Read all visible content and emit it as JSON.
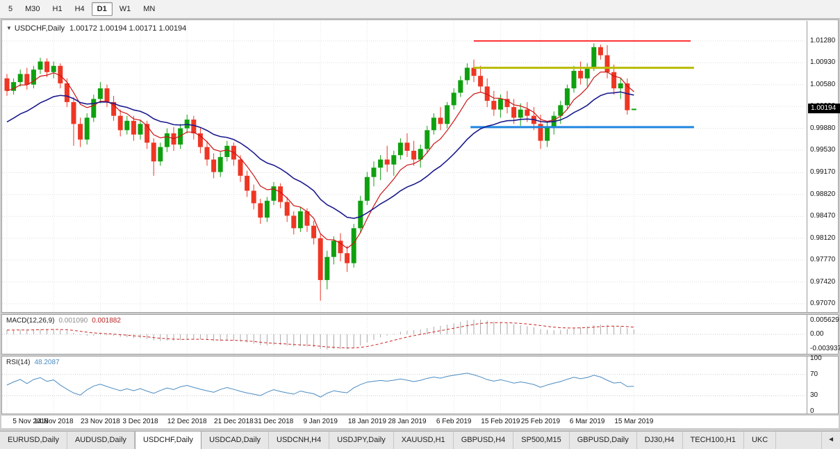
{
  "toolbar": {
    "timeframes": [
      {
        "label": "5",
        "active": false
      },
      {
        "label": "M30",
        "active": false
      },
      {
        "label": "H1",
        "active": false
      },
      {
        "label": "H4",
        "active": false
      },
      {
        "label": "D1",
        "active": true
      },
      {
        "label": "W1",
        "active": false
      },
      {
        "label": "MN",
        "active": false
      }
    ]
  },
  "chart_header": {
    "collapse_icon": "▼",
    "symbol": "USDCHF,Daily",
    "ohlc": "1.00172 1.00194 1.00171 1.00194"
  },
  "price_axis": {
    "labels": [
      "1.01280",
      "1.00930",
      "1.00580",
      "1.00230",
      "0.99880",
      "0.99530",
      "0.99170",
      "0.98820",
      "0.98470",
      "0.98120",
      "0.97770",
      "0.97420",
      "0.97070"
    ],
    "current_price": "1.00194"
  },
  "indicators": {
    "macd": {
      "label": "MACD(12,26,9)",
      "value_main": "0.001090",
      "value_signal": "0.001882",
      "scale": [
        "0.005629",
        "0.00",
        "-0.003937"
      ]
    },
    "rsi": {
      "label": "RSI(14)",
      "value": "48.2087",
      "scale": [
        "100",
        "70",
        "30",
        "0"
      ]
    }
  },
  "date_axis": {
    "labels": [
      {
        "text": "5 Nov 2018",
        "index": 0
      },
      {
        "text": "14 Nov 2018",
        "index": 7
      },
      {
        "text": "23 Nov 2018",
        "index": 14
      },
      {
        "text": "3 Dec 2018",
        "index": 20
      },
      {
        "text": "12 Dec 2018",
        "index": 27
      },
      {
        "text": "21 Dec 2018",
        "index": 34
      },
      {
        "text": "31 Dec 2018",
        "index": 40
      },
      {
        "text": "9 Jan 2019",
        "index": 47
      },
      {
        "text": "18 Jan 2019",
        "index": 54
      },
      {
        "text": "28 Jan 2019",
        "index": 60
      },
      {
        "text": "6 Feb 2019",
        "index": 67
      },
      {
        "text": "15 Feb 2019",
        "index": 74
      },
      {
        "text": "25 Feb 2019",
        "index": 80
      },
      {
        "text": "6 Mar 2019",
        "index": 87
      },
      {
        "text": "15 Mar 2019",
        "index": 94
      }
    ]
  },
  "tabs": {
    "items": [
      {
        "label": "EURUSD,Daily",
        "active": false
      },
      {
        "label": "AUDUSD,Daily",
        "active": false
      },
      {
        "label": "USDCHF,Daily",
        "active": true
      },
      {
        "label": "USDCAD,Daily",
        "active": false
      },
      {
        "label": "USDCNH,H4",
        "active": false
      },
      {
        "label": "USDJPY,Daily",
        "active": false
      },
      {
        "label": "XAUUSD,H1",
        "active": false
      },
      {
        "label": "GBPUSD,H4",
        "active": false
      },
      {
        "label": "SP500,M15",
        "active": false
      },
      {
        "label": "GBPUSD,Daily",
        "active": false
      },
      {
        "label": "DJ30,H4",
        "active": false
      },
      {
        "label": "TECH100,H1",
        "active": false
      },
      {
        "label": "UKC",
        "active": false
      }
    ],
    "scroll_icon": "◄"
  },
  "chart_data": {
    "type": "candlestick",
    "symbol": "USDCHF",
    "timeframe": "Daily",
    "price_range": [
      0.96937,
      1.01601
    ],
    "grid_prices": [
      1.0128,
      1.0093,
      1.0058,
      1.0023,
      0.9988,
      0.9953,
      0.9917,
      0.9882,
      0.9847,
      0.9812,
      0.9777,
      0.9742,
      0.9707
    ],
    "colors": {
      "up": "#0fa00f",
      "down": "#ee3624",
      "macd_histogram": "#a8a8a8",
      "macd_signal": "#cc2222",
      "rsi_line": "#4a8bc2",
      "grid": "#dcdcdc",
      "vgrid": "#e4e4e4",
      "level_grid": "#c8c8c8"
    },
    "candles": [
      [
        1.0068,
        1.0075,
        1.004,
        1.0048
      ],
      [
        1.0048,
        1.0068,
        1.0042,
        1.0062
      ],
      [
        1.0062,
        1.0082,
        1.0055,
        1.0075
      ],
      [
        1.0075,
        1.0085,
        1.005,
        1.0058
      ],
      [
        1.0058,
        1.0088,
        1.0052,
        1.0082
      ],
      [
        1.0082,
        1.0101,
        1.0075,
        1.0095
      ],
      [
        1.0095,
        1.01,
        1.007,
        1.0078
      ],
      [
        1.0078,
        1.0095,
        1.0068,
        1.0088
      ],
      [
        1.0088,
        1.0092,
        1.0052,
        1.006
      ],
      [
        1.006,
        1.0068,
        1.0022,
        1.003
      ],
      [
        1.003,
        1.0038,
        0.996,
        0.9995
      ],
      [
        0.9995,
        1.0005,
        0.9958,
        0.997
      ],
      [
        0.997,
        1.0012,
        0.9962,
        1.0005
      ],
      [
        1.0005,
        1.0042,
        0.9998,
        1.0035
      ],
      [
        1.0035,
        1.0062,
        1.0028,
        1.0052
      ],
      [
        1.0052,
        1.0058,
        1.0022,
        1.003
      ],
      [
        1.003,
        1.004,
        1.0,
        1.0008
      ],
      [
        1.0008,
        1.0018,
        0.9975,
        0.9985
      ],
      [
        0.9985,
        1.0008,
        0.9978,
        1.0
      ],
      [
        1.0,
        1.0008,
        0.9968,
        0.9978
      ],
      [
        0.9978,
        1.0002,
        0.997,
        0.9995
      ],
      [
        0.9995,
        1.0,
        0.9955,
        0.9965
      ],
      [
        0.9965,
        0.9972,
        0.9912,
        0.9935
      ],
      [
        0.9935,
        0.9965,
        0.9928,
        0.9958
      ],
      [
        0.9958,
        0.9988,
        0.995,
        0.998
      ],
      [
        0.998,
        0.999,
        0.9952,
        0.9962
      ],
      [
        0.9962,
        0.9995,
        0.9955,
        0.9988
      ],
      [
        0.9988,
        1.001,
        0.998,
        1.0002
      ],
      [
        1.0002,
        1.0008,
        0.997,
        0.998
      ],
      [
        0.998,
        0.999,
        0.9948,
        0.9958
      ],
      [
        0.9958,
        0.9968,
        0.9928,
        0.9938
      ],
      [
        0.9938,
        0.9948,
        0.9908,
        0.9918
      ],
      [
        0.9918,
        0.995,
        0.991,
        0.9942
      ],
      [
        0.9942,
        0.9968,
        0.9935,
        0.996
      ],
      [
        0.996,
        0.9965,
        0.9928,
        0.9938
      ],
      [
        0.9938,
        0.9945,
        0.9902,
        0.9912
      ],
      [
        0.9912,
        0.992,
        0.9878,
        0.9888
      ],
      [
        0.9888,
        0.9898,
        0.9858,
        0.9868
      ],
      [
        0.9868,
        0.9875,
        0.9835,
        0.9845
      ],
      [
        0.9845,
        0.9878,
        0.9838,
        0.9872
      ],
      [
        0.9872,
        0.9902,
        0.9865,
        0.9895
      ],
      [
        0.9895,
        0.99,
        0.986,
        0.987
      ],
      [
        0.987,
        0.9878,
        0.9838,
        0.9848
      ],
      [
        0.9848,
        0.9855,
        0.9818,
        0.9828
      ],
      [
        0.9828,
        0.9862,
        0.9822,
        0.9855
      ],
      [
        0.9855,
        0.986,
        0.9822,
        0.9832
      ],
      [
        0.9832,
        0.984,
        0.9802,
        0.9812
      ],
      [
        0.9812,
        0.9818,
        0.9712,
        0.9745
      ],
      [
        0.9745,
        0.9792,
        0.973,
        0.9782
      ],
      [
        0.9782,
        0.9815,
        0.977,
        0.9808
      ],
      [
        0.9808,
        0.982,
        0.9775,
        0.9788
      ],
      [
        0.9788,
        0.98,
        0.9758,
        0.9772
      ],
      [
        0.9772,
        0.9835,
        0.9765,
        0.9828
      ],
      [
        0.9828,
        0.988,
        0.982,
        0.9872
      ],
      [
        0.9872,
        0.9918,
        0.9865,
        0.991
      ],
      [
        0.991,
        0.9935,
        0.9895,
        0.9925
      ],
      [
        0.9925,
        0.9945,
        0.9905,
        0.9938
      ],
      [
        0.9938,
        0.996,
        0.9918,
        0.993
      ],
      [
        0.993,
        0.9952,
        0.9912,
        0.9945
      ],
      [
        0.9945,
        0.9972,
        0.9938,
        0.9965
      ],
      [
        0.9965,
        0.998,
        0.9942,
        0.9952
      ],
      [
        0.9952,
        0.9968,
        0.9928,
        0.9938
      ],
      [
        0.9938,
        0.9962,
        0.9925,
        0.9955
      ],
      [
        0.9955,
        0.9992,
        0.9948,
        0.9985
      ],
      [
        0.9985,
        1.0012,
        0.9978,
        1.0005
      ],
      [
        1.0005,
        1.0022,
        0.9985,
        0.9995
      ],
      [
        0.9995,
        1.003,
        0.9988,
        1.0025
      ],
      [
        1.0025,
        1.0052,
        1.0018,
        1.0045
      ],
      [
        1.0045,
        1.0072,
        1.0038,
        1.0065
      ],
      [
        1.0065,
        1.0092,
        1.0058,
        1.0085
      ],
      [
        1.0085,
        1.0098,
        1.0062,
        1.0072
      ],
      [
        1.0072,
        1.0088,
        1.0045,
        1.0055
      ],
      [
        1.0055,
        1.0068,
        1.0022,
        1.0032
      ],
      [
        1.0032,
        1.0048,
        1.0008,
        1.0018
      ],
      [
        1.0018,
        1.0042,
        1.0005,
        1.0035
      ],
      [
        1.0035,
        1.0048,
        1.0012,
        1.0022
      ],
      [
        1.0022,
        1.0035,
        0.9995,
        1.0005
      ],
      [
        1.0005,
        1.0028,
        0.9992,
        1.0018
      ],
      [
        1.0018,
        1.003,
        0.9998,
        1.0008
      ],
      [
        1.0008,
        1.0022,
        0.9985,
        0.9995
      ],
      [
        0.9995,
        1.001,
        0.9955,
        0.9968
      ],
      [
        0.9968,
        0.9998,
        0.9958,
        0.999
      ],
      [
        0.999,
        1.0015,
        0.9978,
        1.0008
      ],
      [
        1.0008,
        1.0032,
        0.9995,
        1.0025
      ],
      [
        1.0025,
        1.0058,
        1.0018,
        1.0052
      ],
      [
        1.0052,
        1.0088,
        1.0045,
        1.008
      ],
      [
        1.008,
        1.0095,
        1.0058,
        1.0068
      ],
      [
        1.0068,
        1.0092,
        1.0055,
        1.0085
      ],
      [
        1.0085,
        1.0124,
        1.008,
        1.0118
      ],
      [
        1.0118,
        1.0122,
        1.0098,
        1.0105
      ],
      [
        1.0105,
        1.0121,
        1.0068,
        1.0078
      ],
      [
        1.0078,
        1.009,
        1.0042,
        1.0052
      ],
      [
        1.0052,
        1.0068,
        1.0035,
        1.006
      ],
      [
        1.006,
        1.0068,
        1.001,
        1.0017
      ],
      [
        1.00172,
        1.00194,
        1.00171,
        1.00194
      ]
    ],
    "hlines": [
      {
        "price": 1.0128,
        "color": "#ff2d2d",
        "width": 2,
        "from": 70,
        "to": 102.5
      },
      {
        "price": 1.0085,
        "color": "#b9bd00",
        "width": 3,
        "from": 70,
        "to": 103
      },
      {
        "price": 0.999,
        "color": "#2086e0",
        "width": 3,
        "from": 69.5,
        "to": 103
      }
    ],
    "moving_averages": [
      {
        "period": 7,
        "color": "#cc1111",
        "width": 1.2,
        "seed_offset": 0
      },
      {
        "period": 20,
        "color": "#1a1a8c",
        "width": 1.6,
        "seed_offset": -0.0055
      }
    ],
    "macd": {
      "fast": 12,
      "slow": 26,
      "signal": 9,
      "slow_seed_offset": -0.0015,
      "scale_max": 0.005629,
      "scale_min": -0.003937
    },
    "rsi": {
      "period": 14,
      "levels": [
        70,
        30
      ]
    }
  }
}
